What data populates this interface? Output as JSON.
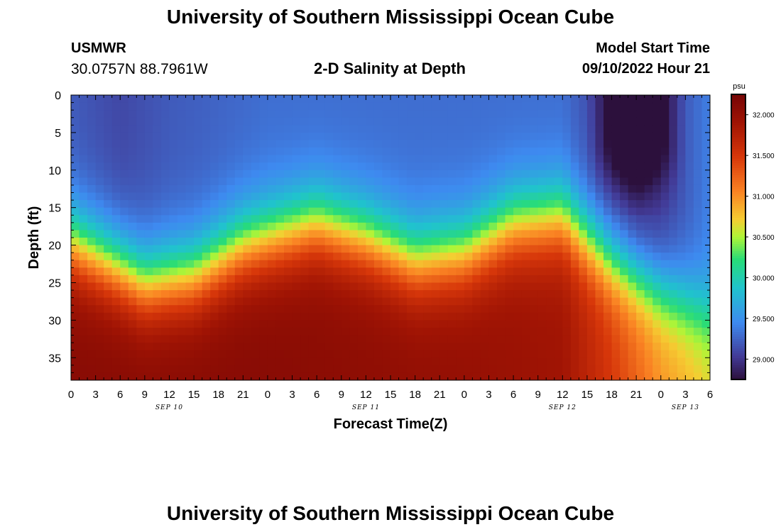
{
  "header": {
    "title": "University of Southern Mississippi Ocean Cube",
    "station": "USMWR",
    "coords": "30.0757N  88.7961W",
    "plot_title": "2-D Salinity at Depth",
    "model_label": "Model Start Time",
    "model_time": "09/10/2022 Hour 21"
  },
  "footer": {
    "title": "University of Southern Mississippi Ocean Cube"
  },
  "chart_data": {
    "type": "heatmap",
    "title": "2-D Salinity at Depth",
    "xlabel": "Forecast Time(Z)",
    "ylabel": "Depth (ft)",
    "x_ticks": [
      "0",
      "3",
      "6",
      "9",
      "12",
      "15",
      "18",
      "21",
      "0",
      "3",
      "6",
      "9",
      "12",
      "15",
      "18",
      "21",
      "0",
      "3",
      "6",
      "9",
      "12",
      "15",
      "18",
      "21",
      "0",
      "3",
      "6"
    ],
    "x_range_hours": [
      0,
      78
    ],
    "date_labels": [
      {
        "text": "SEP 10",
        "hour": 12
      },
      {
        "text": "SEP 11",
        "hour": 36
      },
      {
        "text": "SEP 12",
        "hour": 60
      },
      {
        "text": "SEP 13",
        "hour": 75
      }
    ],
    "y_ticks": [
      0,
      5,
      10,
      15,
      20,
      25,
      30,
      35
    ],
    "y_range_ft": [
      0,
      38
    ],
    "colorbar": {
      "unit": "psu",
      "min": 28.75,
      "max": 32.25,
      "ticks": [
        "32.000",
        "31.500",
        "31.000",
        "30.500",
        "30.000",
        "29.500",
        "29.000"
      ],
      "tick_values": [
        32.0,
        31.5,
        31.0,
        30.5,
        30.0,
        29.5,
        29.0
      ]
    },
    "salinity_field": {
      "description": "Approximate salinity (psu) versus forecast hour and depth",
      "surface_psu_by_hour": [
        [
          0,
          29.2
        ],
        [
          6,
          29.1
        ],
        [
          12,
          29.2
        ],
        [
          24,
          29.3
        ],
        [
          36,
          29.3
        ],
        [
          60,
          29.3
        ],
        [
          66,
          29.0
        ],
        [
          69,
          28.9
        ],
        [
          72,
          29.0
        ],
        [
          78,
          29.4
        ]
      ],
      "halocline_depth_ft_by_hour": [
        [
          0,
          19.5
        ],
        [
          6,
          23
        ],
        [
          9,
          25
        ],
        [
          15,
          24
        ],
        [
          21,
          20
        ],
        [
          30,
          17
        ],
        [
          36,
          19
        ],
        [
          42,
          22
        ],
        [
          48,
          21
        ],
        [
          54,
          17
        ],
        [
          60,
          16
        ],
        [
          66,
          22
        ],
        [
          72,
          26
        ],
        [
          78,
          29
        ]
      ],
      "bottom_psu_by_hour": [
        [
          0,
          32.1
        ],
        [
          24,
          32.1
        ],
        [
          48,
          32.0
        ],
        [
          60,
          31.9
        ],
        [
          66,
          31.5
        ],
        [
          72,
          31.0
        ],
        [
          78,
          30.7
        ]
      ]
    }
  }
}
